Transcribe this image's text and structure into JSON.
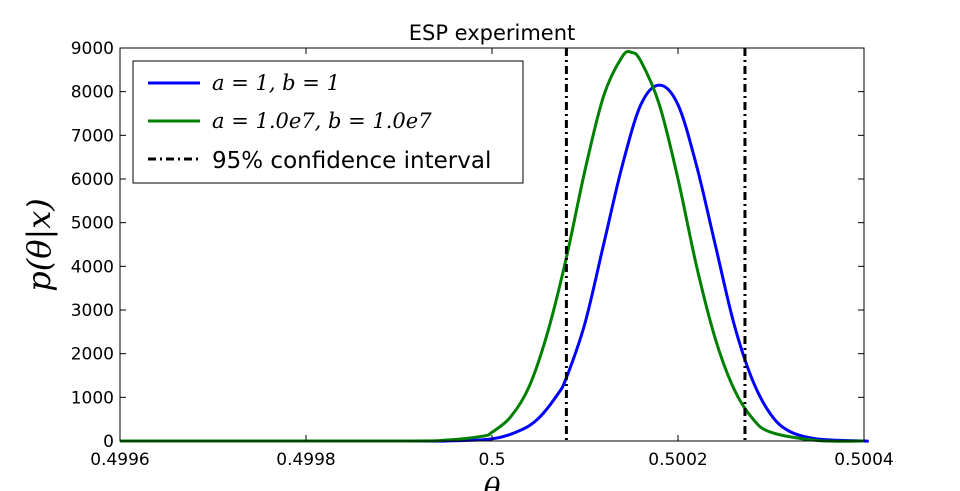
{
  "chart_data": {
    "type": "line",
    "title": "ESP experiment",
    "xlabel": "θ",
    "ylabel": "p(θ|x)",
    "xlim": [
      0.4996,
      0.5004
    ],
    "ylim": [
      0,
      9000
    ],
    "x_ticks": [
      0.4996,
      0.4998,
      0.5,
      0.5002,
      0.5004
    ],
    "x_tick_labels": [
      "0.4996",
      "0.4998",
      "0.5",
      "0.5002",
      "0.5004"
    ],
    "y_ticks": [
      0,
      1000,
      2000,
      3000,
      4000,
      5000,
      6000,
      7000,
      8000,
      9000
    ],
    "y_tick_labels": [
      "0",
      "1000",
      "2000",
      "3000",
      "4000",
      "5000",
      "6000",
      "7000",
      "8000",
      "9000"
    ],
    "grid": false,
    "legend_position": "top-left",
    "series": [
      {
        "name": "a = 1, b = 1",
        "color": "#0000ff",
        "style": "solid",
        "x": [
          0.4999,
          0.49995,
          0.5,
          0.50003,
          0.50005,
          0.50007,
          0.50008,
          0.5001,
          0.50012,
          0.50014,
          0.50016,
          0.50018,
          0.5002,
          0.50022,
          0.50024,
          0.50026,
          0.50028,
          0.5003,
          0.50032,
          0.50035,
          0.5004
        ],
        "y": [
          0,
          1,
          50,
          240,
          520,
          1050,
          1450,
          2700,
          4500,
          6300,
          7700,
          8150,
          7700,
          6300,
          4500,
          2700,
          1400,
          600,
          220,
          45,
          0
        ]
      },
      {
        "name": "a = 1.0e7, b = 1.0e7",
        "color": "#008000",
        "style": "solid",
        "x": [
          0.4999,
          0.49995,
          0.49999,
          0.5,
          0.50002,
          0.50004,
          0.50006,
          0.50008,
          0.5001,
          0.50012,
          0.50014,
          0.50015,
          0.50016,
          0.50018,
          0.5002,
          0.50022,
          0.50024,
          0.50026,
          0.50028,
          0.5003,
          0.50035
        ],
        "y": [
          0,
          20,
          110,
          200,
          550,
          1250,
          2500,
          4200,
          6200,
          7900,
          8800,
          8900,
          8700,
          7700,
          6000,
          4000,
          2350,
          1200,
          520,
          200,
          10
        ]
      }
    ],
    "reference_lines": {
      "name": "95% confidence interval",
      "color": "#000000",
      "style": "dash-dot",
      "x": [
        0.50008,
        0.500272
      ]
    }
  }
}
